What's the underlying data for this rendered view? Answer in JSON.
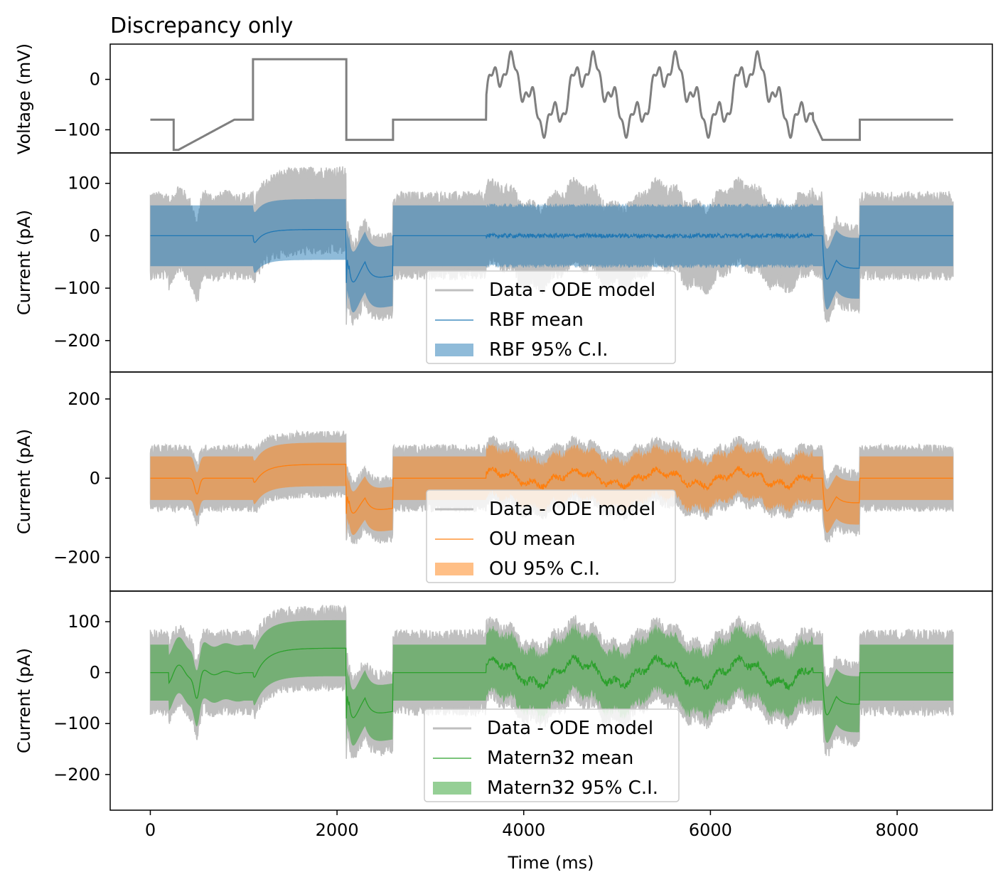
{
  "figure": {
    "title": "Discrepancy only",
    "xlabel": "Time (ms)"
  },
  "chart_data": [
    {
      "type": "line",
      "panel": "voltage",
      "ylabel": "Voltage (mV)",
      "xlim": [
        -430,
        9020
      ],
      "ylim": [
        -146,
        70
      ],
      "xticks": [
        0,
        2000,
        4000,
        6000,
        8000
      ],
      "yticks": [
        0,
        -100
      ],
      "colors": {
        "line": "#7f7f7f"
      },
      "protocol": [
        {
          "t": 0,
          "v": -80
        },
        {
          "t": 250,
          "v": -80
        },
        {
          "t": 250,
          "v": -140
        },
        {
          "t": 300,
          "v": -140
        },
        {
          "t": 900,
          "v": -80
        },
        {
          "t": 1100,
          "v": -80
        },
        {
          "t": 1100,
          "v": 40
        },
        {
          "t": 2100,
          "v": 40
        },
        {
          "t": 2100,
          "v": -120
        },
        {
          "t": 2600,
          "v": -120
        },
        {
          "t": 2600,
          "v": -80
        },
        {
          "t": 3600,
          "v": -80
        },
        {
          "t": 7100,
          "v": -80
        },
        {
          "t": 7200,
          "v": -120
        },
        {
          "t": 7600,
          "v": -120
        },
        {
          "t": 7600,
          "v": -80
        },
        {
          "t": 8600,
          "v": -80
        }
      ],
      "sinusoid": {
        "t_start": 3600,
        "t_end": 7100,
        "offset": -30,
        "components": [
          {
            "amplitude": 54,
            "period_ms": 880
          },
          {
            "amplitude": 26,
            "period_ms": 220
          },
          {
            "amplitude": 10,
            "period_ms": 80
          }
        ]
      }
    },
    {
      "type": "area",
      "panel": "rbf",
      "ylabel": "Current (pA)",
      "ylim": [
        -260,
        158
      ],
      "yticks": [
        100,
        0,
        -100,
        -200
      ],
      "colors": {
        "data": "#bfbfbf",
        "mean": "#1f77b4",
        "band": "#1f77b4"
      },
      "legend": {
        "location": "lower-center",
        "entries": [
          "Data - ODE model",
          "RBF mean",
          "RBF 95% C.I."
        ]
      },
      "series": [
        {
          "name": "Data - ODE model",
          "role": "data"
        },
        {
          "name": "RBF mean",
          "role": "mean",
          "halfwidth": 58
        },
        {
          "name": "RBF 95% C.I.",
          "role": "band"
        }
      ]
    },
    {
      "type": "area",
      "panel": "ou",
      "ylabel": "Current (pA)",
      "ylim": [
        -285,
        268
      ],
      "yticks": [
        200,
        0,
        -200
      ],
      "colors": {
        "data": "#bfbfbf",
        "mean": "#ff7f0e",
        "band": "#ff7f0e"
      },
      "legend": {
        "location": "lower-center",
        "entries": [
          "Data - ODE model",
          "OU mean",
          "OU 95% C.I."
        ]
      },
      "series": [
        {
          "name": "Data - ODE model",
          "role": "data"
        },
        {
          "name": "OU mean",
          "role": "mean",
          "halfwidth": 55
        },
        {
          "name": "OU 95% C.I.",
          "role": "band"
        }
      ]
    },
    {
      "type": "area",
      "panel": "matern",
      "ylabel": "Current (pA)",
      "ylim": [
        -270,
        160
      ],
      "yticks": [
        100,
        0,
        -100,
        -200
      ],
      "colors": {
        "data": "#bfbfbf",
        "mean": "#2ca02c",
        "band": "#2ca02c"
      },
      "legend": {
        "location": "lower-center",
        "entries": [
          "Data - ODE model",
          "Matern32 mean",
          "Matern32 95% C.I."
        ]
      },
      "series": [
        {
          "name": "Data - ODE model",
          "role": "data"
        },
        {
          "name": "Matern32 mean",
          "role": "mean",
          "halfwidth": 55
        },
        {
          "name": "Matern32 95% C.I.",
          "role": "band"
        }
      ]
    }
  ]
}
